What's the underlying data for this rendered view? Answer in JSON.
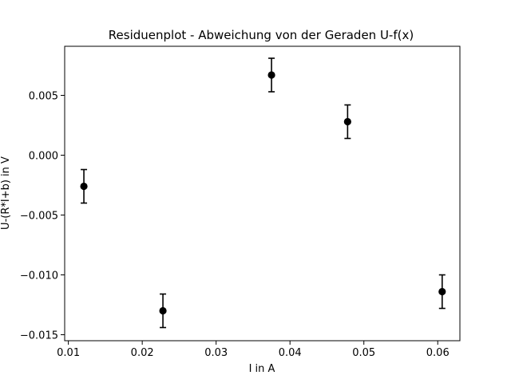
{
  "chart_data": {
    "type": "scatter",
    "title": "Residuenplot - Abweichung von der Geraden U-f(x)",
    "xlabel": "I in A",
    "ylabel": "U-(R*I+b) in V",
    "xlim": [
      0.0095,
      0.063
    ],
    "ylim": [
      -0.0155,
      0.0091
    ],
    "xticks": [
      0.01,
      0.02,
      0.03,
      0.04,
      0.05,
      0.06
    ],
    "xtick_labels": [
      "0.01",
      "0.02",
      "0.03",
      "0.04",
      "0.05",
      "0.06"
    ],
    "yticks": [
      -0.015,
      -0.01,
      -0.005,
      0.0,
      0.005
    ],
    "ytick_labels": [
      "−0.015",
      "−0.010",
      "−0.005",
      "0.000",
      "0.005"
    ],
    "grid": false,
    "points": [
      {
        "x": 0.0121,
        "y": -0.0026,
        "yerr": 0.0014
      },
      {
        "x": 0.0228,
        "y": -0.013,
        "yerr": 0.0014
      },
      {
        "x": 0.0375,
        "y": 0.0067,
        "yerr": 0.0014
      },
      {
        "x": 0.0478,
        "y": 0.0028,
        "yerr": 0.0014
      },
      {
        "x": 0.0606,
        "y": -0.0114,
        "yerr": 0.0014
      }
    ],
    "marker_color": "#000000"
  }
}
